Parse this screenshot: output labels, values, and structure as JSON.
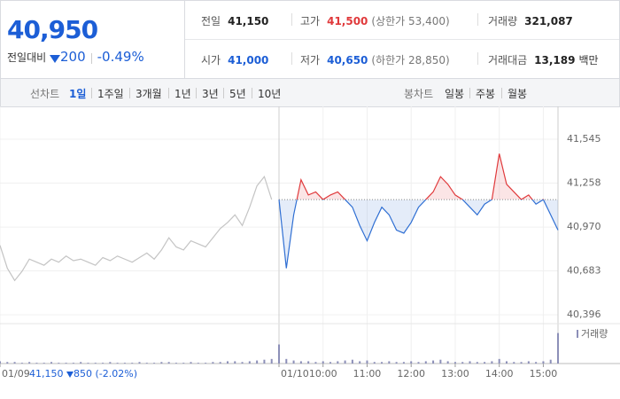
{
  "header": {
    "price": "40,950",
    "change_label": "전일대비",
    "change": "200",
    "rate": "-0.49%"
  },
  "stats": [
    [
      {
        "label": "전일",
        "value": "41,150"
      },
      {
        "label": "고가",
        "value": "41,500",
        "note": "(상한가 53,400)"
      },
      {
        "label": "거래량",
        "value": "321,087"
      }
    ],
    [
      {
        "label": "시가",
        "value": "41,000"
      },
      {
        "label": "저가",
        "value": "40,650",
        "note": "(하한가 28,850)"
      },
      {
        "label": "거래대금",
        "value": "13,189",
        "unit": "백만"
      }
    ]
  ],
  "line_tabs": {
    "label": "선차트",
    "items": [
      "1일",
      "1주일",
      "3개월",
      "1년",
      "3년",
      "5년",
      "10년"
    ]
  },
  "candle_tabs": {
    "label": "봉차트",
    "items": [
      "일봉",
      "주봉",
      "월봉"
    ]
  },
  "prev_summary": {
    "price": "41,150",
    "change": "850",
    "rate": "(-2.02%)"
  },
  "chart_data": {
    "type": "line",
    "x": [
      0,
      10,
      20,
      30,
      40,
      50,
      60,
      70,
      80,
      90,
      100,
      110,
      120,
      130,
      140,
      150,
      160,
      170,
      180,
      190,
      200,
      210,
      220,
      230,
      240,
      250,
      260,
      270,
      280,
      290,
      300,
      310,
      320,
      330,
      340,
      350,
      360,
      370,
      380,
      390,
      400,
      410,
      420,
      430,
      440,
      450,
      460,
      470,
      480,
      490,
      500,
      510,
      520,
      530,
      540,
      550,
      560,
      570,
      580,
      590,
      600,
      610,
      620,
      630,
      640,
      650,
      660,
      670,
      680,
      690,
      700,
      710,
      720,
      730,
      740,
      750,
      760
    ],
    "xlim": [
      0,
      760
    ],
    "xticks": [
      {
        "value": 0,
        "label": "01/09"
      },
      {
        "value": 380,
        "label": "01/10"
      },
      {
        "value": 440,
        "label": "10:00"
      },
      {
        "value": 500,
        "label": "11:00"
      },
      {
        "value": 560,
        "label": "12:00"
      },
      {
        "value": 620,
        "label": "13:00"
      },
      {
        "value": 680,
        "label": "14:00"
      },
      {
        "value": 740,
        "label": "15:00"
      }
    ],
    "ylim": [
      40355,
      41731
    ],
    "yticks": [
      {
        "value": 41545,
        "label": "41,545"
      },
      {
        "value": 41258,
        "label": "41,258"
      },
      {
        "value": 40970,
        "label": "40,970"
      },
      {
        "value": 40683,
        "label": "40,683"
      },
      {
        "value": 40396,
        "label": "40,396"
      }
    ],
    "baseline": 41150,
    "up_color": "#e0393b",
    "down_color": "#2f6fd3",
    "series": [
      {
        "color": "#c4c4c4",
        "values": [
          40850,
          40700,
          40620,
          40680,
          40760,
          40740,
          40720,
          40760,
          40740,
          40780,
          40750,
          40760,
          40740,
          40720,
          40770,
          40750,
          40780,
          40760,
          40740,
          40770,
          40800,
          40760,
          40820,
          40900,
          40840,
          40820,
          40880,
          40860,
          40840,
          40900,
          40960,
          41000,
          41050,
          40980,
          41100,
          41240,
          41300,
          41150,
          null,
          null,
          null,
          null,
          null,
          null,
          null,
          null,
          null,
          null,
          null,
          null,
          null,
          null,
          null,
          null,
          null,
          null,
          null,
          null,
          null,
          null,
          null,
          null,
          null,
          null,
          null,
          null,
          null,
          null,
          null,
          null,
          null,
          null,
          null,
          null,
          null,
          null,
          null
        ]
      },
      {
        "color": "#2f6fd3",
        "values": [
          null,
          null,
          null,
          null,
          null,
          null,
          null,
          null,
          null,
          null,
          null,
          null,
          null,
          null,
          null,
          null,
          null,
          null,
          null,
          null,
          null,
          null,
          null,
          null,
          null,
          null,
          null,
          null,
          null,
          null,
          null,
          null,
          null,
          null,
          null,
          null,
          null,
          null,
          41150,
          40700,
          41050,
          41280,
          41180,
          41200,
          41150,
          41180,
          41200,
          41150,
          41100,
          40980,
          40880,
          41000,
          41100,
          41050,
          40950,
          40930,
          41000,
          41100,
          41150,
          41200,
          41300,
          41250,
          41180,
          41150,
          41100,
          41050,
          41120,
          41150,
          41450,
          41250,
          41200,
          41150,
          41180,
          41120,
          41150,
          41050,
          40950
        ]
      }
    ],
    "volume": {
      "label": "거래량",
      "color": "#8c8fb8",
      "lim": [
        0,
        50
      ],
      "values": [
        3,
        2,
        2,
        1,
        2,
        1,
        1,
        2,
        1,
        1,
        1,
        2,
        1,
        1,
        1,
        2,
        1,
        1,
        1,
        2,
        1,
        1,
        2,
        2,
        1,
        1,
        2,
        1,
        1,
        2,
        2,
        3,
        3,
        2,
        3,
        4,
        5,
        6,
        25,
        6,
        4,
        3,
        3,
        2,
        3,
        2,
        3,
        4,
        5,
        3,
        4,
        2,
        2,
        3,
        2,
        2,
        3,
        2,
        3,
        4,
        5,
        3,
        2,
        2,
        3,
        2,
        2,
        3,
        6,
        3,
        2,
        2,
        3,
        2,
        3,
        5,
        40
      ]
    }
  }
}
